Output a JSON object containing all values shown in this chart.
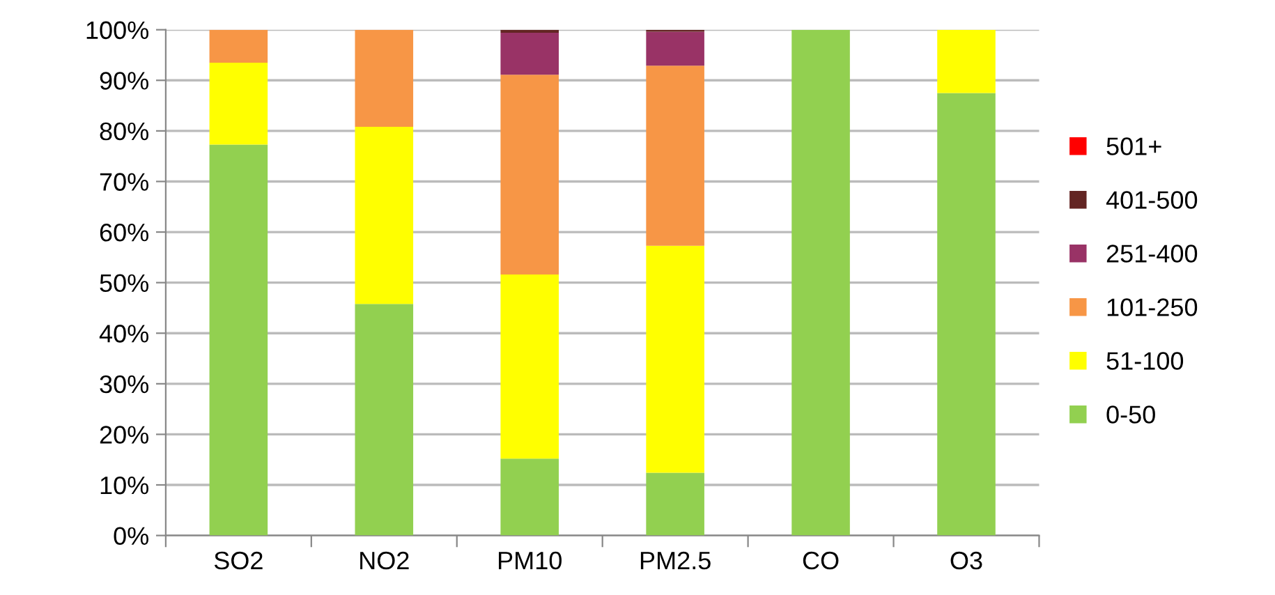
{
  "chart_data": {
    "type": "bar",
    "stacked": true,
    "categories": [
      "SO2",
      "NO2",
      "PM10",
      "PM2.5",
      "CO",
      "O3"
    ],
    "series": [
      {
        "name": "0-50",
        "color": "#92d050",
        "values": [
          77.3,
          45.8,
          15.2,
          12.4,
          100,
          87.5
        ]
      },
      {
        "name": "51-100",
        "color": "#ffff00",
        "values": [
          16.2,
          35.0,
          36.4,
          44.9,
          0,
          12.5
        ]
      },
      {
        "name": "101-250",
        "color": "#f79646",
        "values": [
          6.5,
          19.2,
          39.5,
          35.6,
          0,
          0
        ]
      },
      {
        "name": "251-400",
        "color": "#993366",
        "values": [
          0,
          0,
          8.3,
          6.7,
          0,
          0
        ]
      },
      {
        "name": "401-500",
        "color": "#632523",
        "values": [
          0,
          0,
          0.6,
          0.4,
          0,
          0
        ]
      },
      {
        "name": "501+",
        "color": "#ff0000",
        "values": [
          0,
          0,
          0,
          0,
          0,
          0
        ]
      }
    ],
    "ylim": [
      0,
      100
    ],
    "yticks": [
      {
        "value": 0,
        "label": "0%"
      },
      {
        "value": 10,
        "label": "10%"
      },
      {
        "value": 20,
        "label": "20%"
      },
      {
        "value": 30,
        "label": "30%"
      },
      {
        "value": 40,
        "label": "40%"
      },
      {
        "value": 50,
        "label": "50%"
      },
      {
        "value": 60,
        "label": "60%"
      },
      {
        "value": 70,
        "label": "70%"
      },
      {
        "value": 80,
        "label": "80%"
      },
      {
        "value": 90,
        "label": "90%"
      },
      {
        "value": 100,
        "label": "100%"
      }
    ],
    "grid": "y",
    "legend": "right"
  }
}
